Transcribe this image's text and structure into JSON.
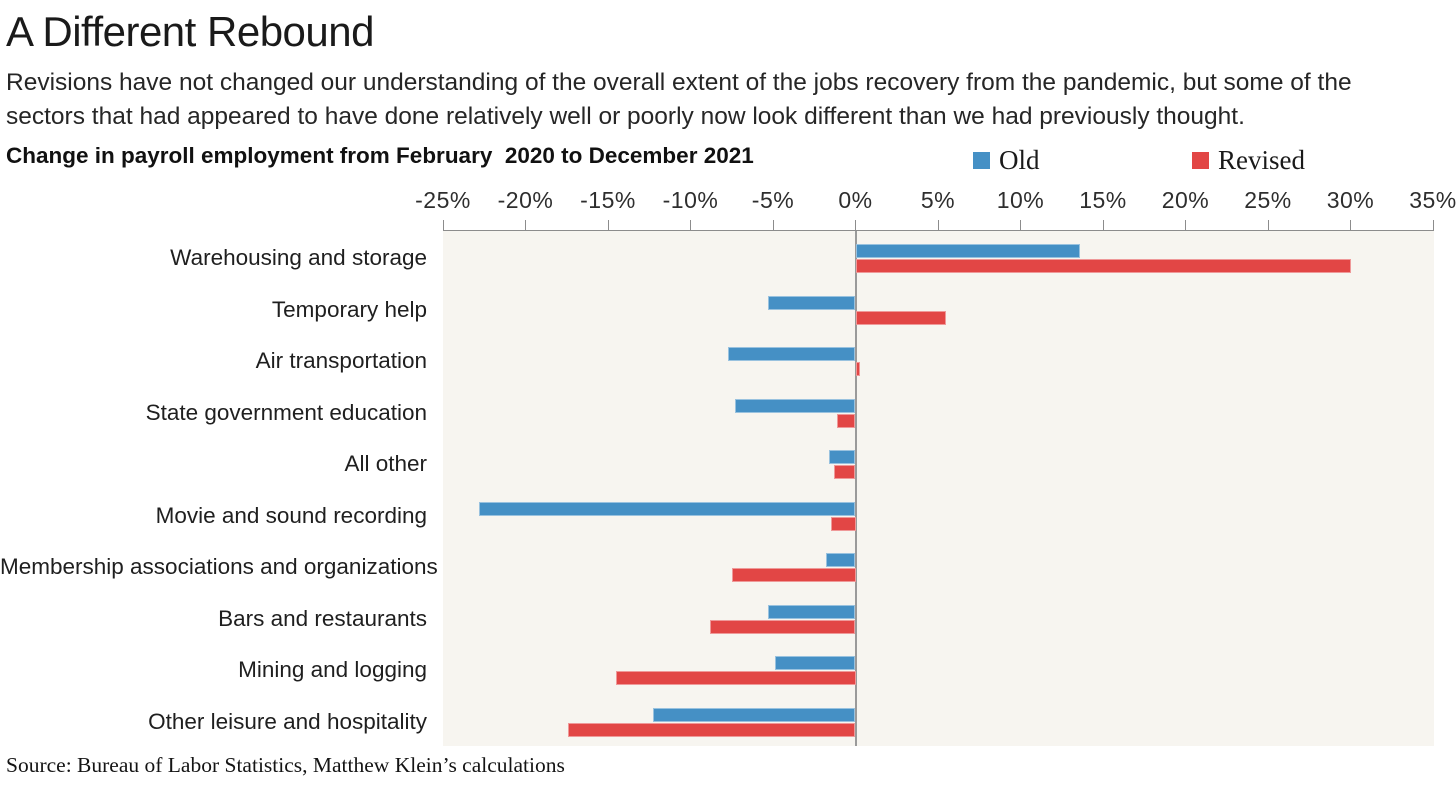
{
  "page": {
    "title": "A Different Rebound",
    "subtitle": "Revisions have not changed our understanding of the overall extent of the jobs recovery from the pandemic, but some of the sectors that had appeared to have done relatively well or poorly now look different than we had previously thought.",
    "source": "Source: Bureau of Labor Statistics, Matthew Klein’s calculations"
  },
  "chart_data": {
    "type": "bar",
    "orientation": "horizontal",
    "title": "Change in payroll employment from February  2020 to December 2021",
    "categories": [
      "Warehousing and storage",
      "Temporary help",
      "Air transportation",
      "State government education",
      "All other",
      "Movie and sound recording",
      "Membership associations and organizations",
      "Bars and restaurants",
      "Mining and logging",
      "Other leisure and hospitality"
    ],
    "series": [
      {
        "name": "Old",
        "color": "#4590c5",
        "values": [
          13.6,
          -5.3,
          -7.7,
          -7.3,
          -1.6,
          -22.8,
          -1.8,
          -5.3,
          -4.9,
          -12.3
        ]
      },
      {
        "name": "Revised",
        "color": "#e24645",
        "values": [
          30,
          5.5,
          0.3,
          -1.1,
          -1.3,
          -1.5,
          -7.5,
          -8.8,
          -14.5,
          -17.4
        ]
      }
    ],
    "unit": "%",
    "xlim": [
      -25,
      35
    ],
    "tick_step": 5,
    "tick_labels": [
      "-25%",
      "-20%",
      "-15%",
      "-10%",
      "-5%",
      "0%",
      "5%",
      "10%",
      "15%",
      "20%",
      "25%",
      "30%",
      "35%"
    ],
    "axis_position": "top",
    "legend_position": "top-right",
    "grid": false,
    "plot_background": "#f7f5f0",
    "axis_color": "#8c8c8c",
    "zero_line_color": "#9a9a9a"
  }
}
